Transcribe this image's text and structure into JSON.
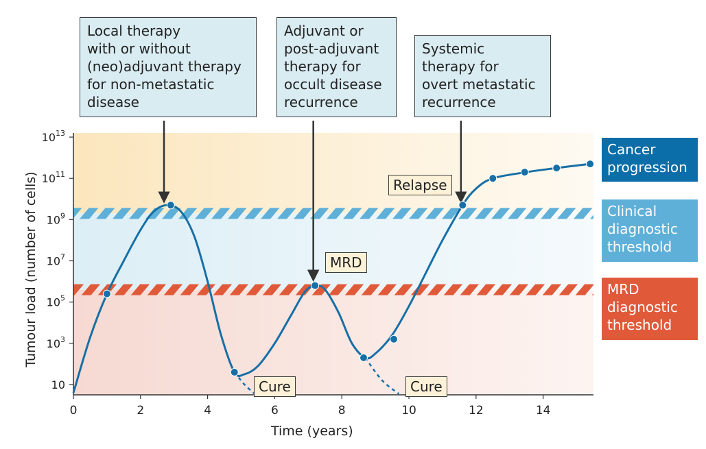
{
  "colors": {
    "curve": "#176fa6",
    "cancer_progression": "#0c6ea8",
    "clinical_threshold": "#5fb0d8",
    "mrd_threshold": "#e05a3a",
    "callout_bg": "#d9ecf2",
    "tag_bg": "#fdf1d8"
  },
  "callouts": {
    "local": "Local therapy\nwith or without\n(neo)adjuvant therapy\nfor non-metastatic\ndisease",
    "adjuvant": "Adjuvant or\npost-adjuvant\ntherapy for\noccult disease\nrecurrence",
    "systemic": "Systemic\ntherapy for\novert metastatic\nrecurrence"
  },
  "tags": {
    "relapse": "Relapse",
    "mrd": "MRD",
    "cure1": "Cure",
    "cure2": "Cure"
  },
  "legend": {
    "cancer_progression": "Cancer\nprogression",
    "clinical_threshold": "Clinical\ndiagnostic\nthreshold",
    "mrd_threshold": "MRD\ndiagnostic\nthreshold"
  },
  "axes": {
    "xlabel": "Time (years)",
    "ylabel": "Tumour load (number of cells)",
    "x_ticks": [
      "0",
      "2",
      "4",
      "6",
      "8",
      "10",
      "12",
      "14"
    ],
    "y_ticks": [
      {
        "value": 1,
        "base": "10",
        "exp": ""
      },
      {
        "value": 3,
        "base": "10",
        "exp": "3"
      },
      {
        "value": 5,
        "base": "10",
        "exp": "5"
      },
      {
        "value": 7,
        "base": "10",
        "exp": "7"
      },
      {
        "value": 9,
        "base": "10",
        "exp": "9"
      },
      {
        "value": 11,
        "base": "10",
        "exp": "11"
      },
      {
        "value": 13,
        "base": "10",
        "exp": "13"
      }
    ]
  },
  "chart_data": {
    "type": "line",
    "xlabel": "Time (years)",
    "ylabel": "Tumour load (number of cells)",
    "xlim": [
      0,
      15.5
    ],
    "ylim_log10": [
      0.5,
      13.2
    ],
    "y_scale": "log",
    "thresholds": {
      "clinical_log10": 9.3,
      "mrd_log10": 5.6
    },
    "curve": {
      "x": [
        0,
        0.5,
        1.0,
        1.5,
        2.0,
        2.4,
        2.8,
        3.2,
        3.6,
        4.0,
        4.4,
        4.8,
        5.1,
        5.5,
        6.0,
        6.5,
        6.9,
        7.2,
        7.5,
        7.9,
        8.3,
        8.7,
        9.0,
        9.5,
        10.0,
        10.5,
        11.0,
        11.6,
        12.0,
        12.5,
        13.5,
        14.4,
        15.4
      ],
      "y_log10": [
        0.6,
        3.3,
        5.4,
        7.0,
        8.5,
        9.4,
        9.7,
        9.4,
        8.2,
        6.0,
        3.4,
        1.6,
        1.5,
        1.9,
        3.0,
        4.4,
        5.5,
        5.8,
        5.6,
        4.5,
        3.0,
        2.3,
        2.5,
        3.4,
        4.8,
        6.4,
        8.0,
        9.7,
        10.5,
        11.0,
        11.3,
        11.5,
        11.7
      ]
    },
    "cure_branches": [
      {
        "x": [
          4.8,
          5.1,
          5.4
        ],
        "y_log10": [
          1.6,
          1.0,
          0.55
        ]
      },
      {
        "x": [
          8.7,
          9.2,
          9.7
        ],
        "y_log10": [
          2.3,
          1.2,
          0.55
        ]
      }
    ],
    "markers": [
      {
        "x": 1.0,
        "y_log10": 5.4
      },
      {
        "x": 2.9,
        "y_log10": 9.7
      },
      {
        "x": 4.8,
        "y_log10": 1.6
      },
      {
        "x": 7.2,
        "y_log10": 5.8
      },
      {
        "x": 8.65,
        "y_log10": 2.3
      },
      {
        "x": 9.55,
        "y_log10": 3.2
      },
      {
        "x": 11.6,
        "y_log10": 9.7
      },
      {
        "x": 12.5,
        "y_log10": 11.0
      },
      {
        "x": 13.45,
        "y_log10": 11.3
      },
      {
        "x": 14.4,
        "y_log10": 11.5
      },
      {
        "x": 15.4,
        "y_log10": 11.7
      }
    ],
    "therapy_arrows": [
      {
        "x": 2.7,
        "y_log10": 9.9
      },
      {
        "x": 7.15,
        "y_log10": 6.1
      },
      {
        "x": 11.55,
        "y_log10": 9.9
      }
    ]
  }
}
